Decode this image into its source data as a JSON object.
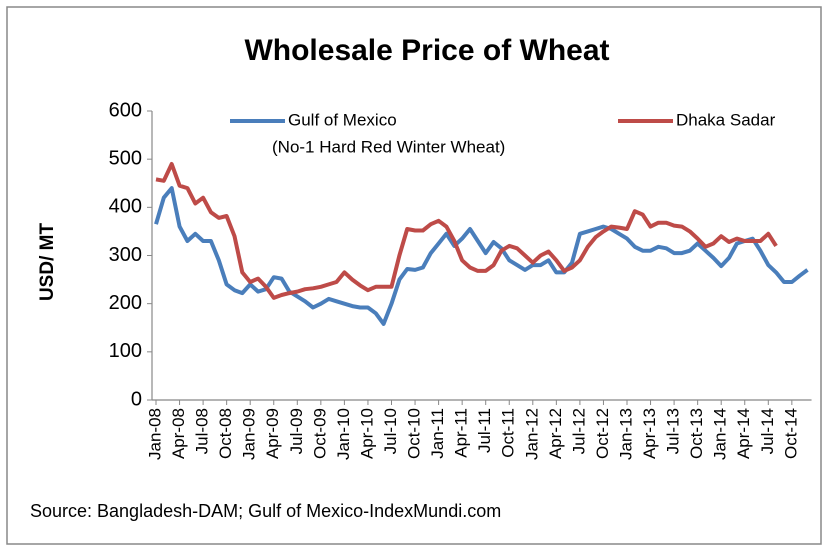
{
  "chart_data": {
    "type": "line",
    "title": "Wholesale Price of Wheat",
    "y_label": "USD/ MT",
    "legend_note": "(No-1 Hard Red Winter Wheat)",
    "source": "Source: Bangladesh-DAM; Gulf of Mexico-IndexMundi.com",
    "categories": [
      "Jan-08",
      null,
      null,
      "Apr-08",
      null,
      null,
      "Jul-08",
      null,
      null,
      "Oct-08",
      null,
      null,
      "Jan-09",
      null,
      null,
      "Apr-09",
      null,
      null,
      "Jul-09",
      null,
      null,
      "Oct-09",
      null,
      null,
      "Jan-10",
      null,
      null,
      "Apr-10",
      null,
      null,
      "Jul-10",
      null,
      null,
      "Oct-10",
      null,
      null,
      "Jan-11",
      null,
      null,
      "Apr-11",
      null,
      null,
      "Jul-11",
      null,
      null,
      "Oct-11",
      null,
      null,
      "Jan-12",
      null,
      null,
      "Apr-12",
      null,
      null,
      "Jul-12",
      null,
      null,
      "Oct-12",
      null,
      null,
      "Jan-13",
      null,
      null,
      "Apr-13",
      null,
      null,
      "Jul-13",
      null,
      null,
      "Oct-13",
      null,
      null,
      "Jan-14",
      null,
      null,
      "Apr-14",
      null,
      null,
      "Jul-14",
      null,
      null,
      "Oct-14",
      null,
      null
    ],
    "series": [
      {
        "name": "Gulf of Mexico",
        "color": "#4a7ebb",
        "values": [
          365,
          420,
          440,
          360,
          330,
          345,
          330,
          330,
          290,
          240,
          228,
          222,
          240,
          225,
          230,
          255,
          252,
          225,
          215,
          205,
          192,
          200,
          210,
          205,
          200,
          195,
          192,
          192,
          180,
          158,
          200,
          250,
          272,
          270,
          275,
          305,
          325,
          345,
          320,
          335,
          355,
          330,
          305,
          328,
          315,
          290,
          280,
          270,
          280,
          280,
          290,
          265,
          265,
          285,
          345,
          350,
          355,
          360,
          355,
          345,
          335,
          318,
          310,
          310,
          318,
          315,
          305,
          305,
          310,
          325,
          310,
          295,
          278,
          295,
          325,
          330,
          335,
          310,
          280,
          265,
          245,
          245,
          258,
          270
        ]
      },
      {
        "name": "Dhaka Sadar",
        "color": "#be4b48",
        "values": [
          458,
          455,
          490,
          445,
          440,
          408,
          420,
          390,
          378,
          382,
          340,
          265,
          245,
          252,
          235,
          212,
          218,
          222,
          225,
          230,
          232,
          235,
          240,
          245,
          265,
          250,
          238,
          228,
          235,
          235,
          235,
          300,
          355,
          352,
          352,
          365,
          372,
          360,
          330,
          290,
          275,
          268,
          268,
          280,
          310,
          320,
          315,
          300,
          285,
          300,
          308,
          290,
          268,
          275,
          290,
          318,
          338,
          350,
          360,
          358,
          355,
          392,
          385,
          360,
          368,
          368,
          362,
          360,
          350,
          335,
          318,
          325,
          340,
          328,
          335,
          330,
          330,
          330,
          345,
          320,
          null,
          null,
          null,
          null
        ]
      }
    ],
    "ylim": [
      0,
      600
    ],
    "yticks": [
      0,
      100,
      200,
      300,
      400,
      500,
      600
    ]
  }
}
